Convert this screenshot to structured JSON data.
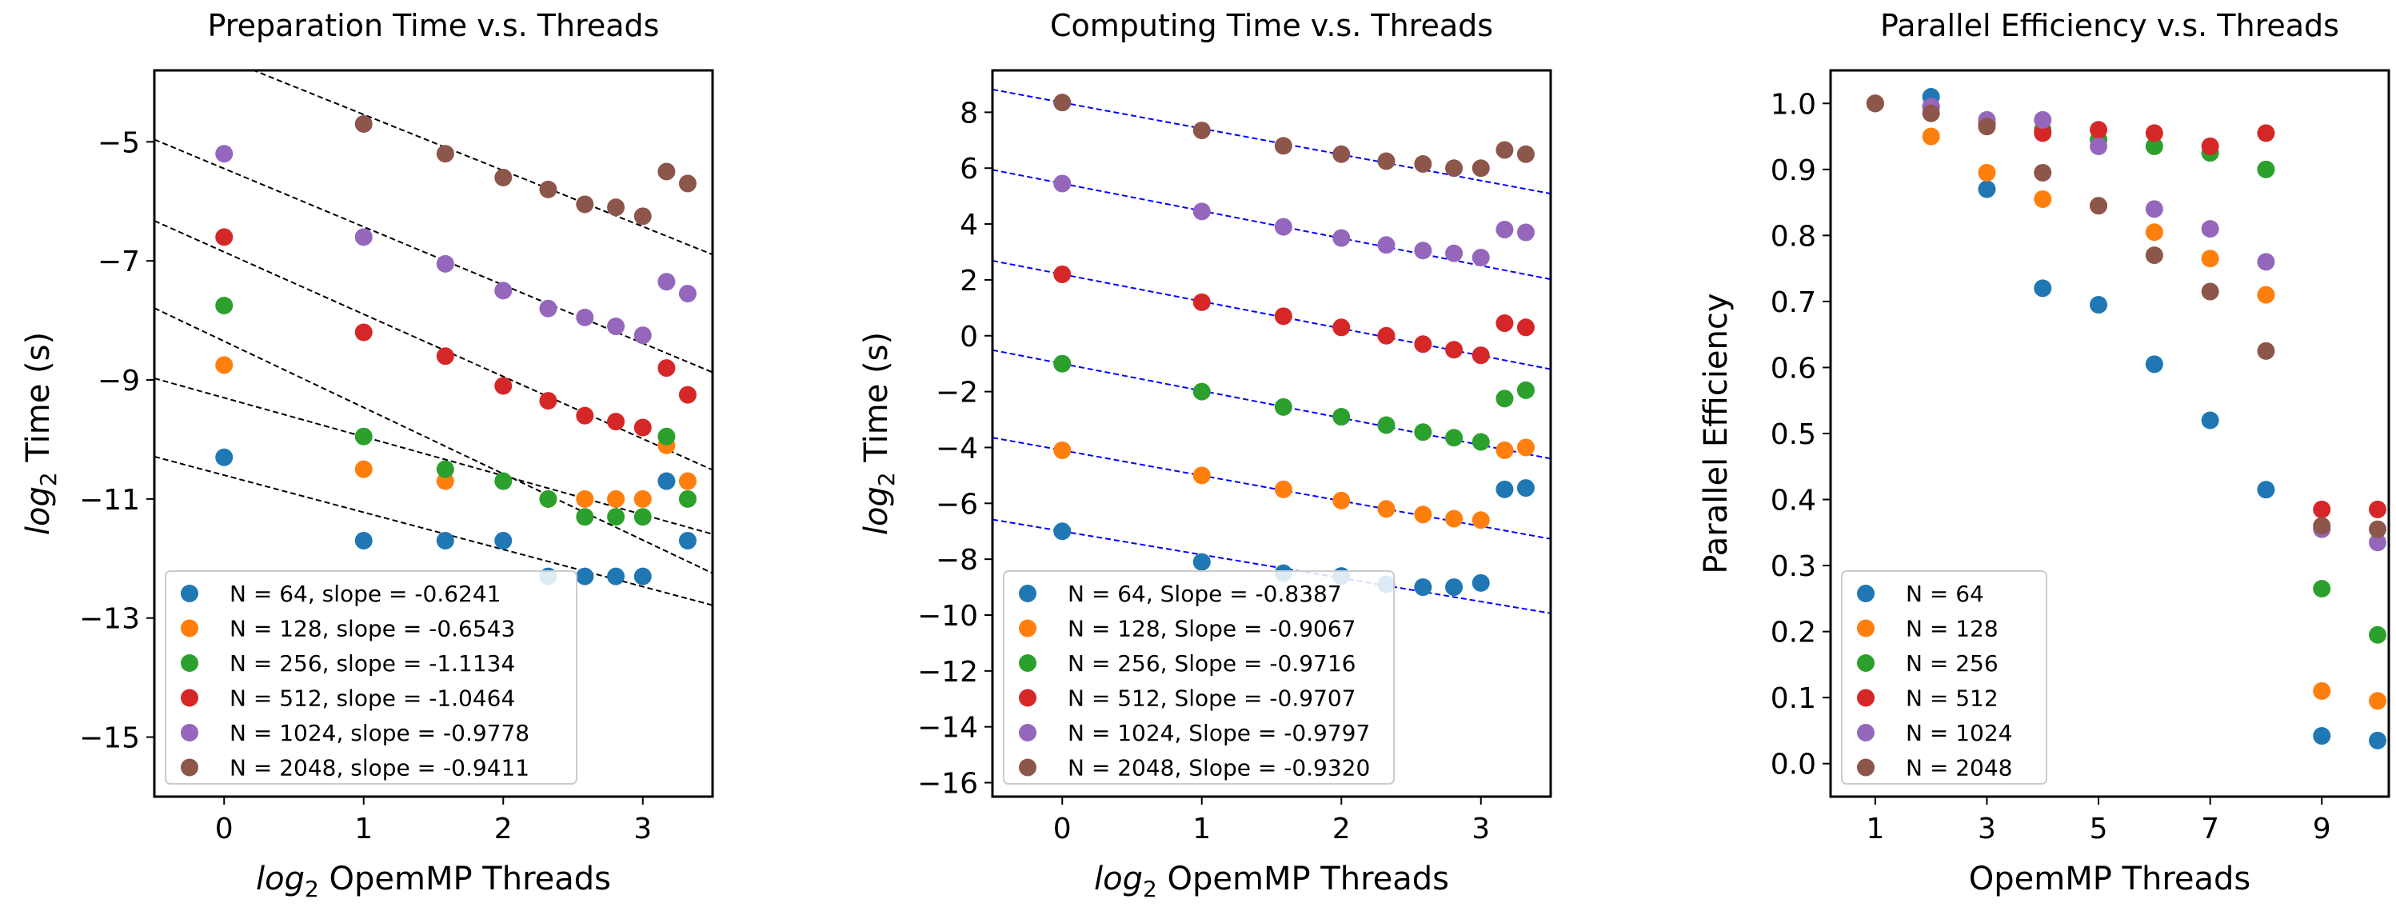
{
  "colors": [
    "#1f77b4",
    "#ff7f0e",
    "#2ca02c",
    "#d62728",
    "#9467bd",
    "#8c564b"
  ],
  "chart_data": [
    {
      "type": "scatter",
      "title": "Preparation Time v.s. Threads",
      "xlabel": "log2 OpemMP Threads",
      "xlabel_parts": {
        "pre": "log",
        "sub": "2",
        "post": " OpemMP Threads"
      },
      "ylabel": "log2 Time (s)",
      "ylabel_parts": {
        "pre": "log",
        "sub": "2",
        "post": " Time (s)"
      },
      "xlim": [
        -0.5,
        3.5
      ],
      "ylim": [
        -16,
        -3.8
      ],
      "xticks": [
        0,
        1,
        2,
        3
      ],
      "xtick_labels": [
        "0",
        "1",
        "2",
        "3"
      ],
      "yticks": [
        -5,
        -7,
        -9,
        -11,
        -13,
        -15
      ],
      "ytick_labels": [
        "−5",
        "−7",
        "−9",
        "−11",
        "−13",
        "−15"
      ],
      "x": [
        0,
        1,
        1.585,
        2,
        2.322,
        2.585,
        2.807,
        3,
        3.17,
        3.322
      ],
      "fit_lines": true,
      "fit_color": "#000000",
      "legend_position": "lower-left",
      "series": [
        {
          "name": "N = 64,  slope = -0.6241",
          "values": [
            -10.3,
            -11.7,
            -11.7,
            -11.7,
            -12.3,
            -12.3,
            -12.3,
            -12.3,
            -10.7,
            -11.7
          ],
          "fit": {
            "intercept": -10.6,
            "slope": -0.6241
          }
        },
        {
          "name": "N = 128,  slope = -0.6543",
          "values": [
            -8.75,
            -10.5,
            -10.7,
            null,
            -11.0,
            -11.0,
            -11.0,
            -11.0,
            -10.1,
            -10.7
          ],
          "fit": {
            "intercept": -9.3,
            "slope": -0.6543
          }
        },
        {
          "name": "N = 256,  slope = -1.1134",
          "values": [
            -7.75,
            -9.95,
            -10.5,
            -10.7,
            -11.0,
            -11.3,
            -11.3,
            -11.3,
            -9.95,
            -11.0
          ],
          "fit": {
            "intercept": -8.35,
            "slope": -1.1134
          }
        },
        {
          "name": "N = 512,  slope = -1.0464",
          "values": [
            -6.6,
            -8.2,
            -8.6,
            -9.1,
            -9.35,
            -9.6,
            -9.7,
            -9.8,
            -8.8,
            -9.25
          ],
          "fit": {
            "intercept": -6.85,
            "slope": -1.0464
          }
        },
        {
          "name": "N = 1024,  slope = -0.9778",
          "values": [
            -5.2,
            -6.6,
            -7.05,
            -7.5,
            -7.8,
            -7.95,
            -8.1,
            -8.25,
            -7.35,
            -7.55
          ],
          "fit": {
            "intercept": -5.45,
            "slope": -0.9778
          }
        },
        {
          "name": "N = 2048,  slope = -0.9411",
          "values": [
            null,
            -4.7,
            -5.2,
            -5.6,
            -5.8,
            -6.05,
            -6.1,
            -6.25,
            -5.5,
            -5.7
          ],
          "fit": {
            "intercept": -3.6,
            "slope": -0.9411
          }
        }
      ]
    },
    {
      "type": "scatter",
      "title": "Computing Time v.s. Threads",
      "xlabel": "log2 OpemMP Threads",
      "xlabel_parts": {
        "pre": "log",
        "sub": "2",
        "post": " OpemMP Threads"
      },
      "ylabel": "log2 Time (s)",
      "ylabel_parts": {
        "pre": "log",
        "sub": "2",
        "post": " Time (s)"
      },
      "xlim": [
        -0.5,
        3.5
      ],
      "ylim": [
        -16.5,
        9.5
      ],
      "xticks": [
        0,
        1,
        2,
        3
      ],
      "xtick_labels": [
        "0",
        "1",
        "2",
        "3"
      ],
      "yticks": [
        8,
        6,
        4,
        2,
        0,
        -2,
        -4,
        -6,
        -8,
        -10,
        -12,
        -14,
        -16
      ],
      "ytick_labels": [
        "8",
        "6",
        "4",
        "2",
        "0",
        "−2",
        "−4",
        "−6",
        "−8",
        "−10",
        "−12",
        "−14",
        "−16"
      ],
      "x": [
        0,
        1,
        1.585,
        2,
        2.322,
        2.585,
        2.807,
        3,
        3.17,
        3.322
      ],
      "fit_lines": true,
      "fit_color": "#0000ff",
      "legend_position": "lower-left",
      "series": [
        {
          "name": "N = 64, Slope = -0.8387",
          "values": [
            -7.0,
            -8.1,
            -8.5,
            -8.6,
            -8.9,
            -9.0,
            -9.0,
            -8.85,
            -5.5,
            -5.45
          ],
          "fit": {
            "intercept": -7.0,
            "slope": -0.8387
          }
        },
        {
          "name": "N = 128, Slope = -0.9067",
          "values": [
            -4.1,
            -5.0,
            -5.5,
            -5.9,
            -6.2,
            -6.4,
            -6.55,
            -6.6,
            -4.1,
            -4.0
          ],
          "fit": {
            "intercept": -4.1,
            "slope": -0.9067
          }
        },
        {
          "name": "N = 256, Slope = -0.9716",
          "values": [
            -1.0,
            -2.0,
            -2.55,
            -2.9,
            -3.2,
            -3.45,
            -3.65,
            -3.8,
            -2.25,
            -1.95
          ],
          "fit": {
            "intercept": -1.0,
            "slope": -0.9716
          }
        },
        {
          "name": "N = 512, Slope = -0.9707",
          "values": [
            2.2,
            1.2,
            0.7,
            0.3,
            0.0,
            -0.3,
            -0.5,
            -0.7,
            0.45,
            0.3
          ],
          "fit": {
            "intercept": 2.2,
            "slope": -0.9707
          }
        },
        {
          "name": "N = 1024, Slope = -0.9797",
          "values": [
            5.45,
            4.45,
            3.9,
            3.5,
            3.25,
            3.05,
            2.95,
            2.8,
            3.8,
            3.7
          ],
          "fit": {
            "intercept": 5.45,
            "slope": -0.9797
          }
        },
        {
          "name": "N = 2048, Slope = -0.9320",
          "values": [
            8.35,
            7.35,
            6.8,
            6.5,
            6.25,
            6.15,
            6.0,
            6.0,
            6.65,
            6.5
          ],
          "fit": {
            "intercept": 8.35,
            "slope": -0.932
          }
        }
      ]
    },
    {
      "type": "scatter",
      "title": "Parallel Efficiency v.s. Threads",
      "xlabel": "OpemMP Threads",
      "ylabel": "Parallel Efficiency",
      "xlim": [
        0.2,
        10.2
      ],
      "ylim": [
        -0.05,
        1.05
      ],
      "xticks": [
        1,
        3,
        5,
        7,
        9
      ],
      "xtick_labels": [
        "1",
        "3",
        "5",
        "7",
        "9"
      ],
      "yticks": [
        0.0,
        0.1,
        0.2,
        0.3,
        0.4,
        0.5,
        0.6,
        0.7,
        0.8,
        0.9,
        1.0
      ],
      "ytick_labels": [
        "0.0",
        "0.1",
        "0.2",
        "0.3",
        "0.4",
        "0.5",
        "0.6",
        "0.7",
        "0.8",
        "0.9",
        "1.0"
      ],
      "x": [
        1,
        2,
        3,
        4,
        5,
        6,
        7,
        8,
        9,
        10
      ],
      "fit_lines": false,
      "legend_position": "lower-left",
      "series": [
        {
          "name": "N = 64",
          "values": [
            1.0,
            1.01,
            0.87,
            0.72,
            0.695,
            0.605,
            0.52,
            0.415,
            0.042,
            0.035
          ]
        },
        {
          "name": "N = 128",
          "values": [
            1.0,
            0.95,
            0.895,
            0.855,
            0.845,
            0.805,
            0.765,
            0.71,
            0.11,
            0.095
          ]
        },
        {
          "name": "N = 256",
          "values": [
            1.0,
            0.995,
            0.97,
            0.96,
            0.945,
            0.935,
            0.925,
            0.9,
            0.265,
            0.195
          ]
        },
        {
          "name": "N = 512",
          "values": [
            1.0,
            0.995,
            0.97,
            0.955,
            0.96,
            0.955,
            0.935,
            0.955,
            0.385,
            0.385
          ]
        },
        {
          "name": "N = 1024",
          "values": [
            1.0,
            0.995,
            0.975,
            0.975,
            0.935,
            0.84,
            0.81,
            0.76,
            0.355,
            0.335
          ]
        },
        {
          "name": "N = 2048",
          "values": [
            1.0,
            0.985,
            0.965,
            0.895,
            0.845,
            0.77,
            0.715,
            0.625,
            0.36,
            0.355
          ]
        }
      ]
    }
  ]
}
